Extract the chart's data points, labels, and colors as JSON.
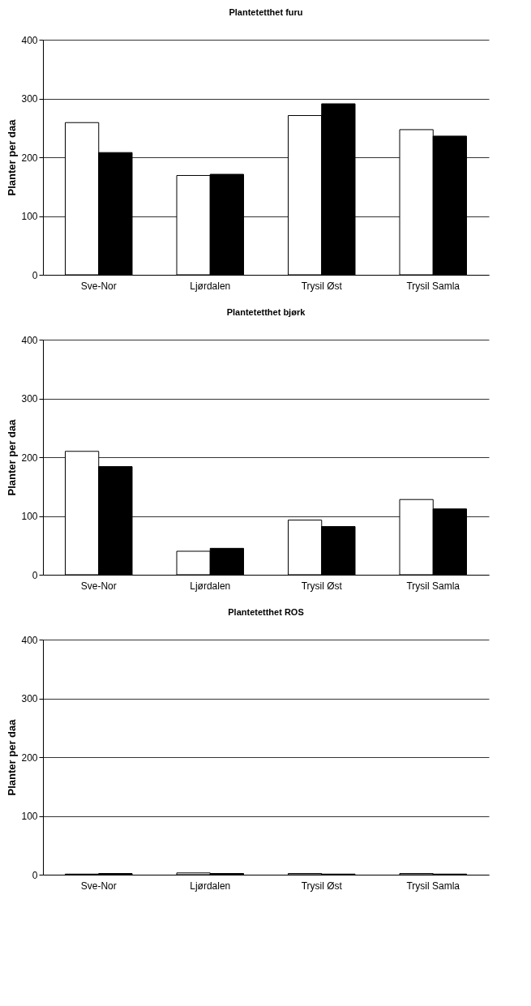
{
  "chart_data": [
    {
      "type": "bar",
      "title": "Plantetetthet furu",
      "ylabel": "Planter per daa",
      "categories": [
        "Sve-Nor",
        "Ljørdalen",
        "Trysil Øst",
        "Trysil Samla"
      ],
      "series": [
        {
          "color": "#ffffff",
          "values": [
            259,
            169,
            271,
            247
          ]
        },
        {
          "color": "#000000",
          "values": [
            208,
            171,
            291,
            236
          ]
        }
      ],
      "ylim": [
        0,
        400
      ],
      "yticks": [
        0,
        100,
        200,
        300,
        400
      ],
      "grid": "y"
    },
    {
      "type": "bar",
      "title": "Plantetetthet bjørk",
      "ylabel": "Planter per daa",
      "categories": [
        "Sve-Nor",
        "Ljørdalen",
        "Trysil Øst",
        "Trysil Samla"
      ],
      "series": [
        {
          "color": "#ffffff",
          "values": [
            210,
            40,
            93,
            128
          ]
        },
        {
          "color": "#000000",
          "values": [
            184,
            45,
            82,
            112
          ]
        }
      ],
      "ylim": [
        0,
        400
      ],
      "yticks": [
        0,
        100,
        200,
        300,
        400
      ],
      "grid": "y"
    },
    {
      "type": "bar",
      "title": "Plantetetthet ROS",
      "ylabel": "Planter per daa",
      "categories": [
        "Sve-Nor",
        "Ljørdalen",
        "Trysil Øst",
        "Trysil Samla"
      ],
      "series": [
        {
          "color": "#ffffff",
          "values": [
            1,
            3,
            2,
            2
          ]
        },
        {
          "color": "#000000",
          "values": [
            2,
            2,
            1,
            1
          ]
        }
      ],
      "ylim": [
        0,
        400
      ],
      "yticks": [
        0,
        100,
        200,
        300,
        400
      ],
      "grid": "y"
    }
  ]
}
